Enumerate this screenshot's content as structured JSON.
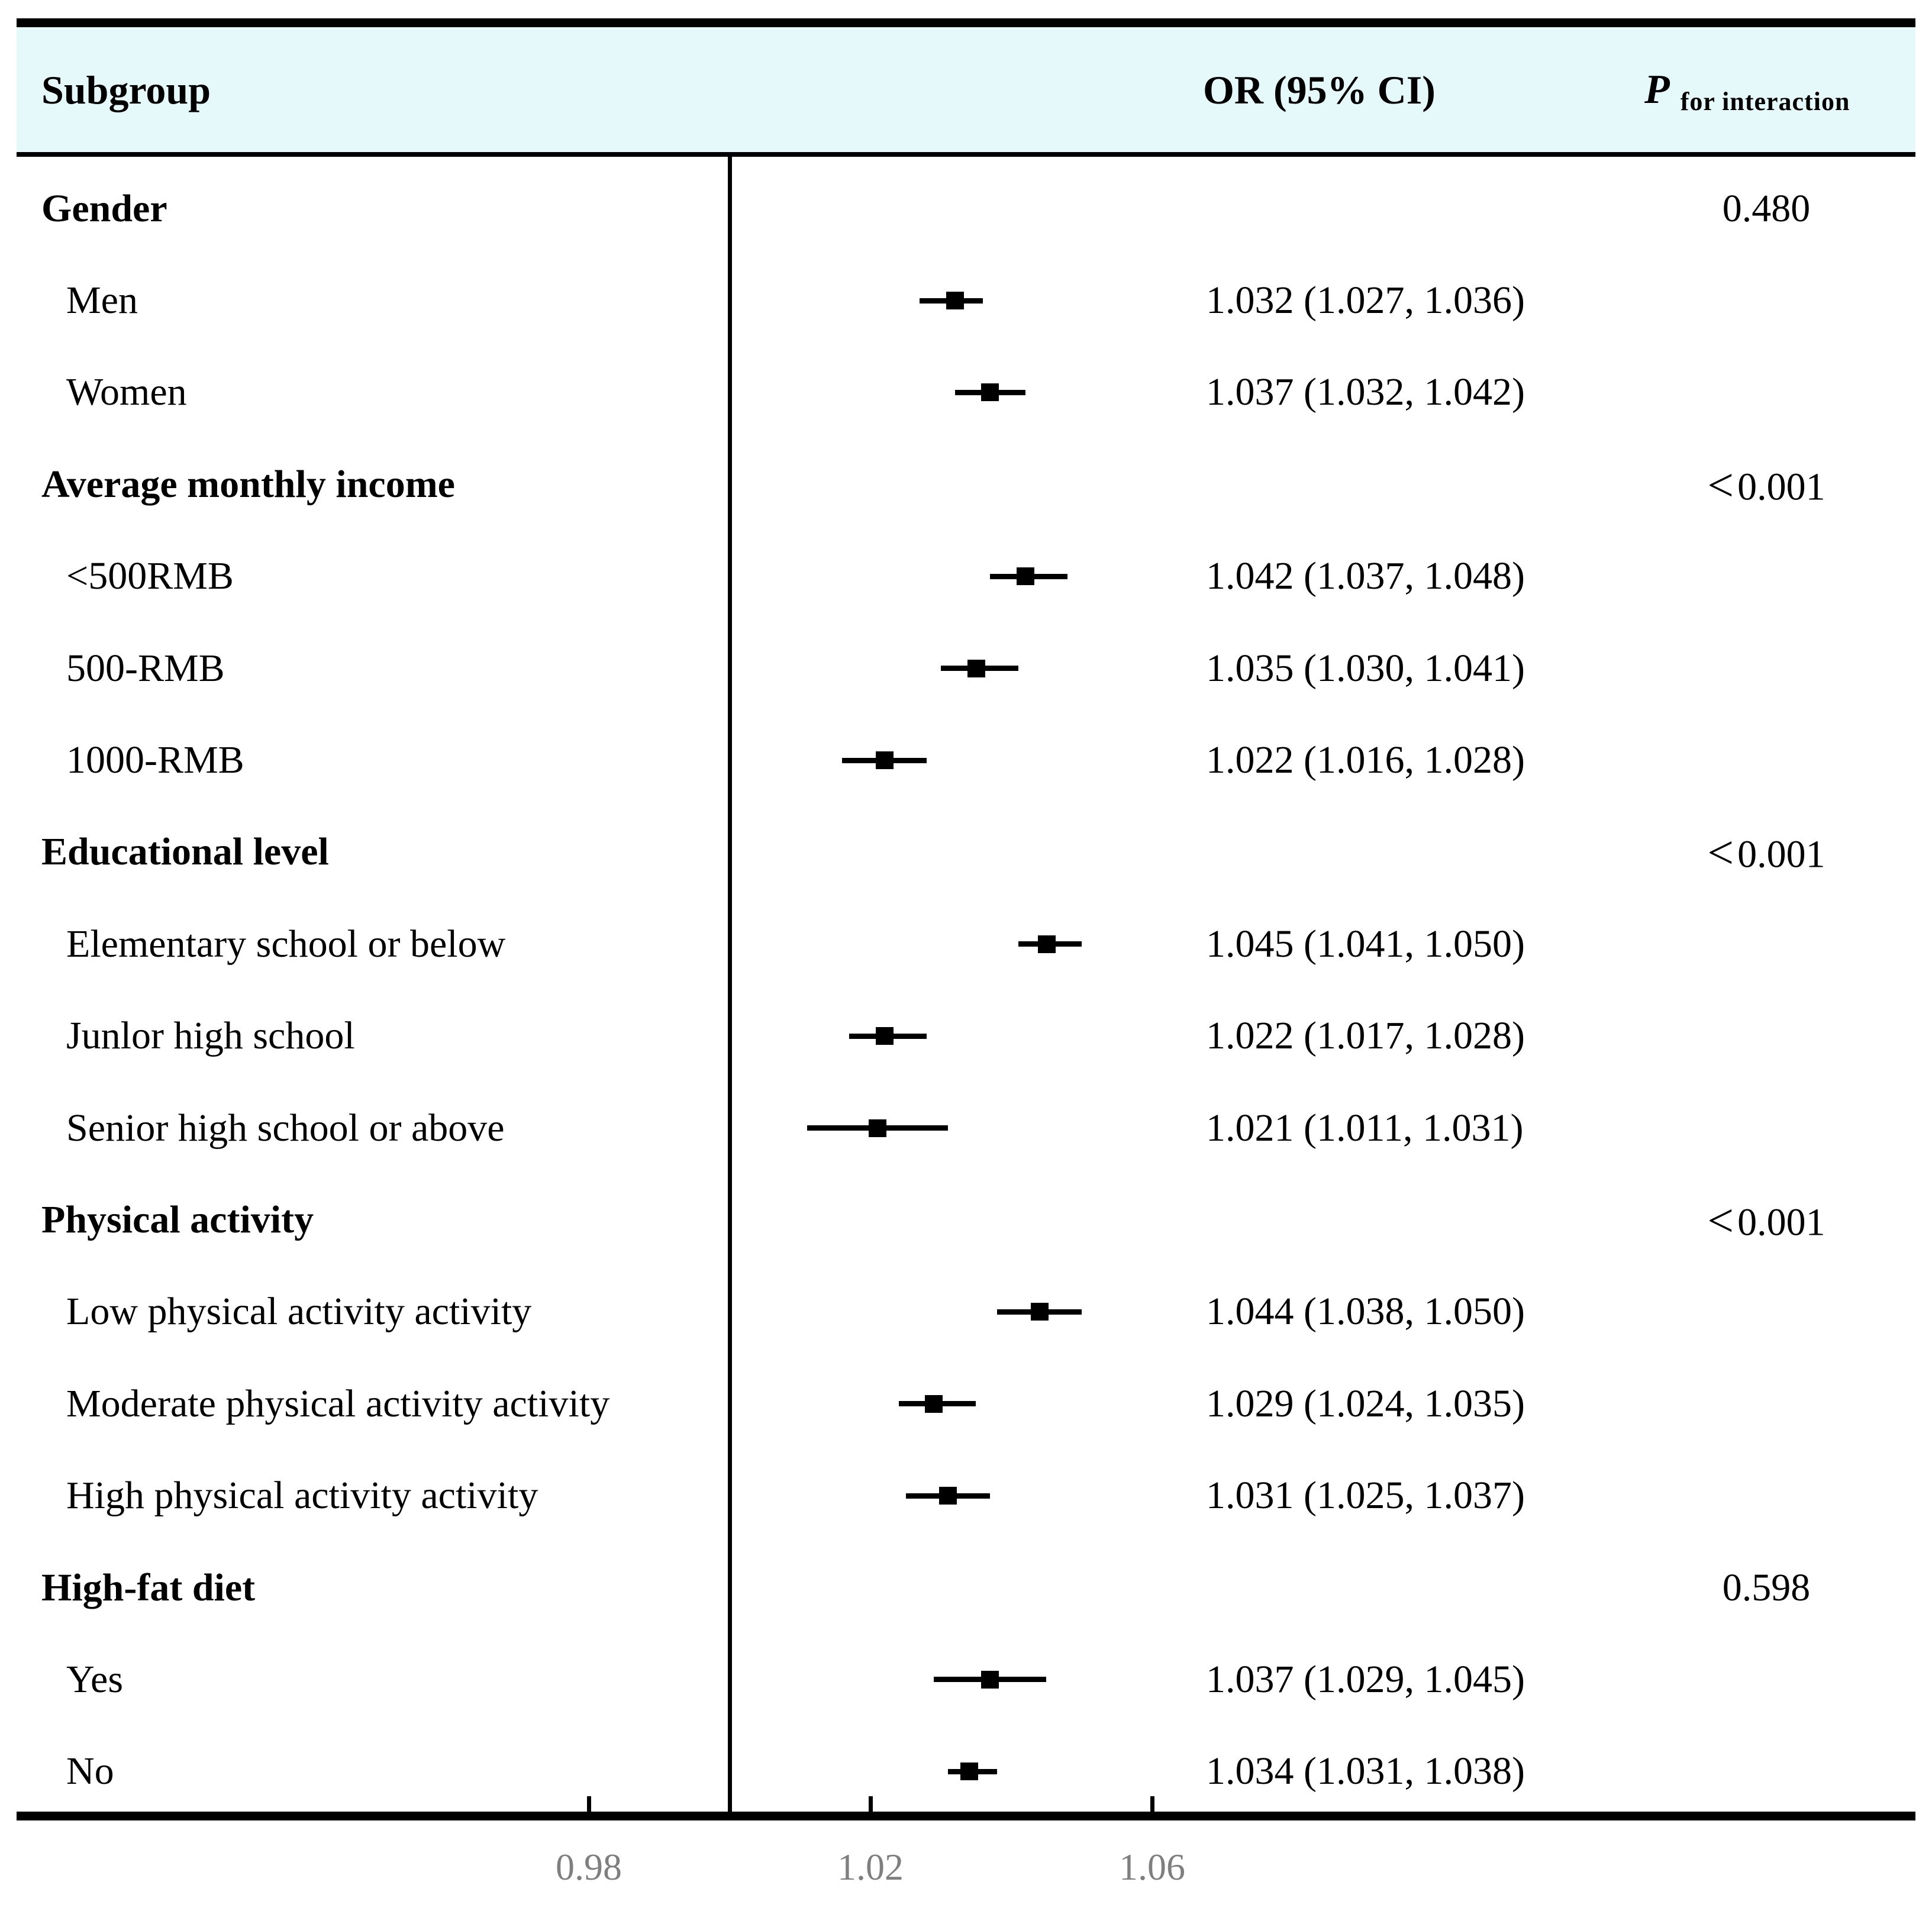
{
  "header": {
    "subgroup_label": "Subgroup",
    "or_ci_label": "OR (95% CI)",
    "p_italic": "P",
    "p_subscript": "for interaction",
    "bg_color": "#e6f9fa"
  },
  "axis": {
    "ticks": [
      {
        "value": 0.98,
        "label": "0.98"
      },
      {
        "value": 1.02,
        "label": "1.02"
      },
      {
        "value": 1.06,
        "label": "1.06"
      }
    ],
    "reference_value": 1.0,
    "tick_label_color": "#7f7f7f"
  },
  "colors": {
    "text": "#000000",
    "marker": "#000000",
    "header_bg": "#e6f9fa",
    "axis_label_gray": "#7f7f7f"
  },
  "chart_data": {
    "type": "forest",
    "title": "",
    "xlabel": "",
    "x_axis": {
      "tick_values": [
        0.98,
        1.02,
        1.06
      ],
      "reference_line": 1.0,
      "range_shown": [
        0.955,
        1.09
      ]
    },
    "legend": "none",
    "rows": [
      {
        "group": true,
        "label": "Gender",
        "p": "0.480"
      },
      {
        "group": false,
        "label": "Men",
        "or": 1.032,
        "lo": 1.027,
        "hi": 1.036,
        "or_ci": "1.032 (1.027, 1.036)"
      },
      {
        "group": false,
        "label": "Women",
        "or": 1.037,
        "lo": 1.032,
        "hi": 1.042,
        "or_ci": "1.037 (1.032, 1.042)"
      },
      {
        "group": true,
        "label": "Average monthly income",
        "p": "<0.001"
      },
      {
        "group": false,
        "label": "<500RMB",
        "or": 1.042,
        "lo": 1.037,
        "hi": 1.048,
        "or_ci": "1.042 (1.037, 1.048)"
      },
      {
        "group": false,
        "label": "500-RMB",
        "or": 1.035,
        "lo": 1.03,
        "hi": 1.041,
        "or_ci": "1.035 (1.030, 1.041)"
      },
      {
        "group": false,
        "label": "1000-RMB",
        "or": 1.022,
        "lo": 1.016,
        "hi": 1.028,
        "or_ci": "1.022 (1.016, 1.028)"
      },
      {
        "group": true,
        "label": "Educational level",
        "p": "<0.001"
      },
      {
        "group": false,
        "label": "Elementary school or below",
        "or": 1.045,
        "lo": 1.041,
        "hi": 1.05,
        "or_ci": "1.045 (1.041, 1.050)"
      },
      {
        "group": false,
        "label": "Junlor high school",
        "or": 1.022,
        "lo": 1.017,
        "hi": 1.028,
        "or_ci": "1.022 (1.017, 1.028)"
      },
      {
        "group": false,
        "label": "Senior high school or above",
        "or": 1.021,
        "lo": 1.011,
        "hi": 1.031,
        "or_ci": "1.021 (1.011, 1.031)"
      },
      {
        "group": true,
        "label": "Physical activity",
        "p": "<0.001"
      },
      {
        "group": false,
        "label": "Low physical activity activity",
        "or": 1.044,
        "lo": 1.038,
        "hi": 1.05,
        "or_ci": "1.044 (1.038, 1.050)"
      },
      {
        "group": false,
        "label": "Moderate physical activity activity",
        "or": 1.029,
        "lo": 1.024,
        "hi": 1.035,
        "or_ci": "1.029 (1.024, 1.035)"
      },
      {
        "group": false,
        "label": "High physical activity activity",
        "or": 1.031,
        "lo": 1.025,
        "hi": 1.037,
        "or_ci": "1.031 (1.025, 1.037)"
      },
      {
        "group": true,
        "label": "High-fat diet",
        "p": "0.598"
      },
      {
        "group": false,
        "label": "Yes",
        "or": 1.037,
        "lo": 1.029,
        "hi": 1.045,
        "or_ci": "1.037 (1.029, 1.045)"
      },
      {
        "group": false,
        "label": "No",
        "or": 1.034,
        "lo": 1.031,
        "hi": 1.038,
        "or_ci": "1.034 (1.031, 1.038)"
      }
    ]
  }
}
